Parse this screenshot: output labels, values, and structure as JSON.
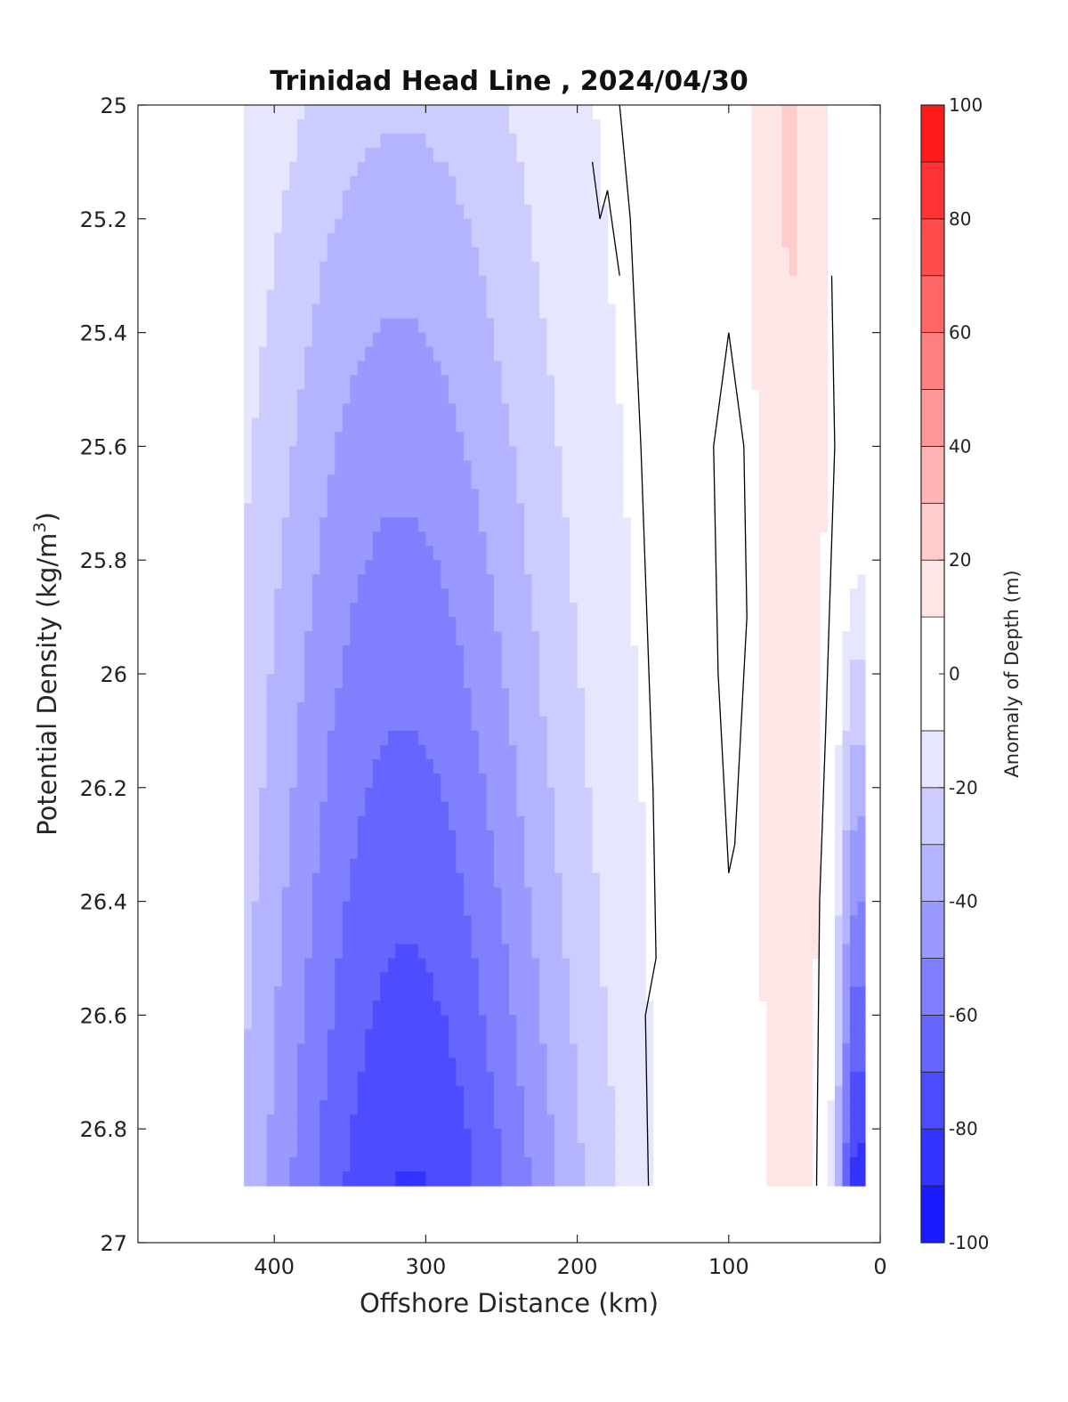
{
  "chart_data": {
    "type": "heatmap",
    "subtype": "filled-contour",
    "title": "Trinidad Head Line , 2024/04/30",
    "xlabel": "Offshore Distance (km)",
    "ylabel_main": "Potential Density (kg/m",
    "ylabel_sup": "3",
    "ylabel_close": ")",
    "xlim": [
      490,
      0
    ],
    "x_reversed": true,
    "ylim": [
      25,
      27
    ],
    "y_reversed": true,
    "x_ticks": [
      400,
      300,
      200,
      100,
      0
    ],
    "y_ticks": [
      "25",
      "25.2",
      "25.4",
      "25.6",
      "25.8",
      "26",
      "26.2",
      "26.4",
      "26.6",
      "26.8",
      "27"
    ],
    "colorbar": {
      "label": "Anomaly of Depth (m)",
      "min": -100,
      "max": 100,
      "ticks": [
        100,
        80,
        60,
        40,
        20,
        0,
        -20,
        -40,
        -60,
        -80,
        -100
      ],
      "levels": [
        -100,
        -90,
        -80,
        -70,
        -60,
        -50,
        -40,
        -30,
        -20,
        -10,
        10,
        20,
        30,
        40,
        50,
        60,
        70,
        80,
        90,
        100
      ],
      "colors": [
        "#0000ff",
        "#1a1aff",
        "#3333ff",
        "#4d4dff",
        "#6666ff",
        "#8080ff",
        "#9999ff",
        "#b3b3ff",
        "#ccccff",
        "#e6e6ff",
        "#ffffff",
        "#ffe6e6",
        "#ffcccc",
        "#ffb3b3",
        "#ff9999",
        "#ff8080",
        "#ff6666",
        "#ff4d4d",
        "#ff3333",
        "#ff1a1a",
        "#ff0000"
      ]
    },
    "data_extent": {
      "x": [
        420,
        10
      ],
      "y": [
        25,
        26.9
      ]
    },
    "grid": false,
    "legend": "colorbar-right",
    "zero_contour_color": "#000000"
  }
}
